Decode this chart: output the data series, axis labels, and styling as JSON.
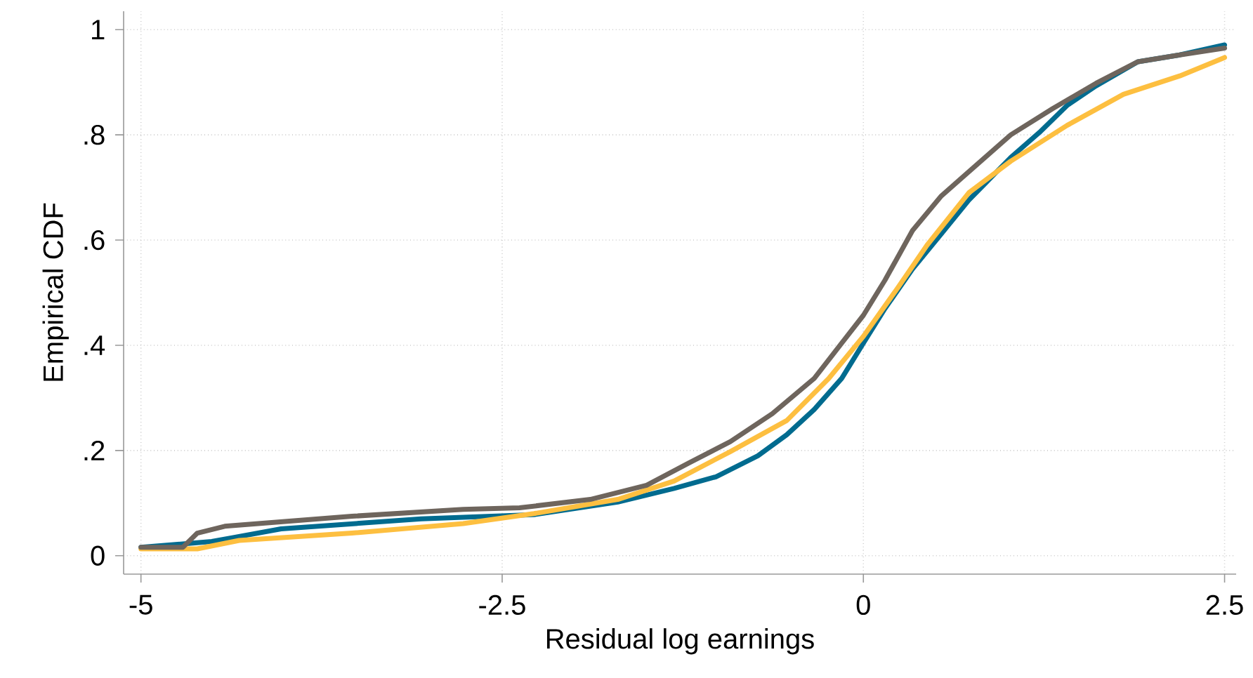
{
  "chart_data": {
    "type": "line",
    "xlabel": "Residual log earnings",
    "ylabel": "Empirical CDF",
    "xlim": [
      -5.12,
      2.58
    ],
    "ylim": [
      -0.035,
      1.035
    ],
    "xticks": [
      -5,
      -2.5,
      0,
      2.5
    ],
    "yticks": [
      0,
      {
        "value": 0.2,
        "label": ".2"
      },
      {
        "value": 0.4,
        "label": ".4"
      },
      {
        "value": 0.6,
        "label": ".6"
      },
      {
        "value": 0.8,
        "label": ".8"
      },
      1
    ],
    "grid": true,
    "legend": false,
    "marker": "none",
    "line_style": "solid",
    "series": [
      {
        "color": "#006b8f",
        "x": [
          -5,
          -4.51,
          -4.03,
          -3.06,
          -2.28,
          -1.7,
          -1.31,
          -1.02,
          -0.73,
          -0.53,
          -0.34,
          -0.15,
          0,
          0.15,
          0.34,
          0.54,
          0.73,
          1.02,
          1.22,
          1.41,
          1.61,
          1.9,
          2.19,
          2.5
        ],
        "values": [
          0.016,
          0.027,
          0.051,
          0.07,
          0.078,
          0.102,
          0.128,
          0.15,
          0.19,
          0.23,
          0.278,
          0.337,
          0.404,
          0.47,
          0.545,
          0.612,
          0.676,
          0.757,
          0.805,
          0.856,
          0.893,
          0.939,
          0.952,
          0.971
        ]
      },
      {
        "color": "#fdbf40",
        "x": [
          -5,
          -4.61,
          -4.32,
          -3.54,
          -2.77,
          -2.28,
          -1.7,
          -1.31,
          -0.92,
          -0.53,
          -0.24,
          0,
          0.24,
          0.44,
          0.73,
          1.02,
          1.41,
          1.8,
          2.19,
          2.5
        ],
        "values": [
          0.013,
          0.013,
          0.029,
          0.043,
          0.061,
          0.08,
          0.107,
          0.142,
          0.198,
          0.257,
          0.337,
          0.417,
          0.51,
          0.59,
          0.69,
          0.75,
          0.818,
          0.877,
          0.912,
          0.947
        ]
      },
      {
        "color": "#6e655d",
        "x": [
          -5,
          -4.71,
          -4.61,
          -4.42,
          -3.54,
          -2.77,
          -2.38,
          -1.89,
          -1.5,
          -1.21,
          -0.92,
          -0.63,
          -0.34,
          -0.15,
          0,
          0.15,
          0.34,
          0.54,
          0.73,
          1.02,
          1.31,
          1.61,
          1.9,
          2.19,
          2.5
        ],
        "values": [
          0.016,
          0.016,
          0.043,
          0.056,
          0.075,
          0.088,
          0.091,
          0.107,
          0.134,
          0.176,
          0.217,
          0.27,
          0.337,
          0.404,
          0.457,
          0.524,
          0.618,
          0.684,
          0.73,
          0.8,
          0.85,
          0.898,
          0.939,
          0.952,
          0.965
        ]
      }
    ]
  }
}
